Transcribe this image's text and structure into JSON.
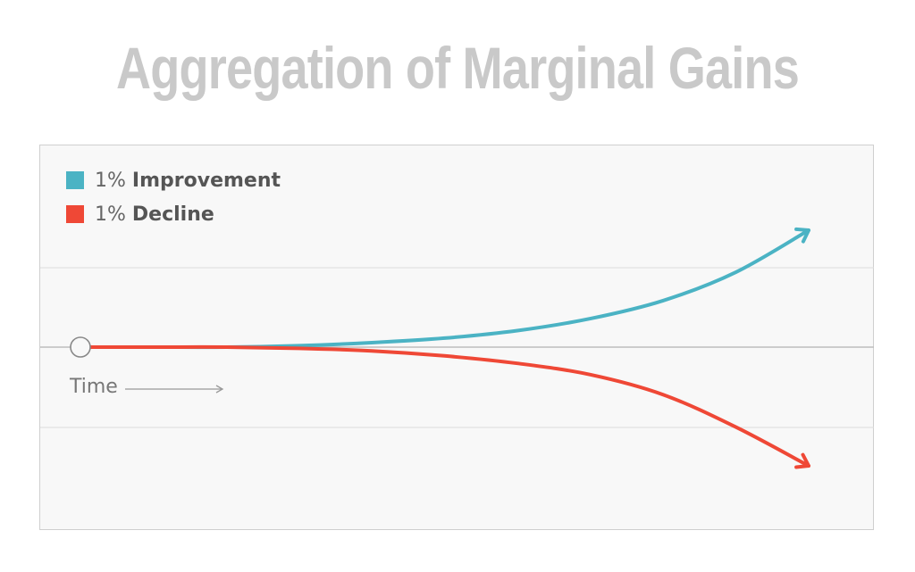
{
  "chart_data": {
    "type": "line",
    "title": "Aggregation of Marginal Gains",
    "xlabel": "Time",
    "ylabel": "",
    "legend_placement": "top-left",
    "grid": true,
    "x": [
      0,
      10,
      20,
      30,
      40,
      50,
      60,
      70,
      80,
      90,
      100
    ],
    "series": [
      {
        "name": "Improvement",
        "prefix": "1%",
        "color": "#4bb3c4",
        "values": [
          0,
          0,
          0,
          0.01,
          0.03,
          0.06,
          0.11,
          0.19,
          0.31,
          0.5,
          0.78
        ]
      },
      {
        "name": "Decline",
        "prefix": "1%",
        "color": "#ef4836",
        "values": [
          0,
          0,
          0,
          -0.01,
          -0.03,
          -0.07,
          -0.13,
          -0.22,
          -0.38,
          -0.64,
          -0.95
        ]
      }
    ]
  }
}
